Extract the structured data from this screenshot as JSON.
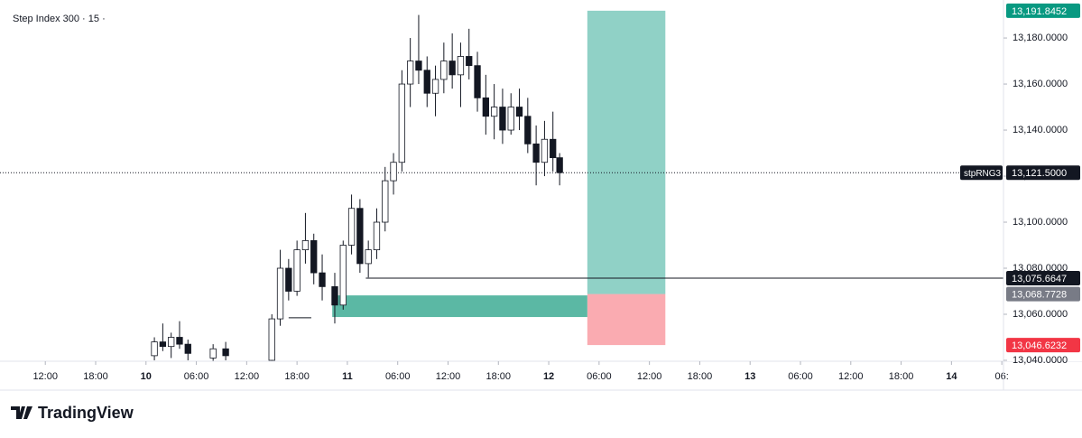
{
  "chart_data": {
    "type": "candlestick",
    "title": "Step Index 300 · 15 ·",
    "x": [
      13,
      14,
      15,
      16,
      17,
      20,
      21.5,
      27,
      28,
      29,
      30,
      31,
      32,
      33,
      34.5,
      35.5,
      36.5,
      37.5,
      38.5,
      39.5,
      40.5,
      41.5,
      42.5,
      43.5,
      44.5,
      45.5,
      46.5,
      47.5,
      48.5,
      49.5,
      50.5,
      51.5,
      52.5,
      53.5,
      54.5,
      55.5,
      56.5,
      57.5,
      58.5,
      59.5,
      60.5,
      61.3
    ],
    "open": [
      13042,
      13048,
      13046,
      13050,
      13047,
      13041,
      13045,
      13040,
      13058,
      13080,
      13070,
      13088,
      13092,
      13078,
      13072,
      13064,
      13090,
      13106,
      13082,
      13088,
      13100,
      13118,
      13126,
      13160,
      13170,
      13166,
      13156,
      13162,
      13170,
      13164,
      13172,
      13168,
      13154,
      13146,
      13150,
      13140,
      13150,
      13146,
      13134,
      13126,
      13136,
      13128
    ],
    "high": [
      13050,
      13056,
      13052,
      13057,
      13049,
      13047,
      13048,
      13060,
      13088,
      13084,
      13092,
      13104,
      13095,
      13086,
      13078,
      13092,
      13112,
      13110,
      13092,
      13106,
      13124,
      13130,
      13166,
      13180,
      13190,
      13172,
      13168,
      13178,
      13182,
      13178,
      13184,
      13174,
      13164,
      13160,
      13158,
      13156,
      13158,
      13154,
      13142,
      13144,
      13148,
      13130
    ],
    "low": [
      13040,
      13044,
      13041,
      13045,
      13040,
      13039,
      13040,
      13039,
      13055,
      13066,
      13068,
      13082,
      13073,
      13066,
      13056,
      13062,
      13086,
      13078,
      13076,
      13084,
      13096,
      13112,
      13122,
      13150,
      13160,
      13150,
      13146,
      13156,
      13158,
      13150,
      13162,
      13148,
      13138,
      13136,
      13134,
      13138,
      13140,
      13130,
      13116,
      13120,
      13122,
      13116
    ],
    "close": [
      13048,
      13046,
      13050,
      13047,
      13043,
      13045,
      13042,
      13058,
      13080,
      13070,
      13088,
      13092,
      13078,
      13072,
      13064,
      13090,
      13106,
      13082,
      13088,
      13100,
      13118,
      13126,
      13160,
      13170,
      13166,
      13156,
      13162,
      13170,
      13164,
      13172,
      13168,
      13154,
      13146,
      13150,
      13140,
      13150,
      13146,
      13134,
      13126,
      13136,
      13128,
      13121.5
    ],
    "xlim": [
      -5.4,
      114.2
    ],
    "xticks": [
      {
        "value": 0,
        "label": "12:00"
      },
      {
        "value": 6,
        "label": "18:00"
      },
      {
        "value": 12,
        "label": "10"
      },
      {
        "value": 18,
        "label": "06:00"
      },
      {
        "value": 24,
        "label": "12:00"
      },
      {
        "value": 30,
        "label": "18:00"
      },
      {
        "value": 36,
        "label": "11"
      },
      {
        "value": 42,
        "label": "06:00"
      },
      {
        "value": 48,
        "label": "12:00"
      },
      {
        "value": 54,
        "label": "18:00"
      },
      {
        "value": 60,
        "label": "12"
      },
      {
        "value": 66,
        "label": "06:00"
      },
      {
        "value": 72,
        "label": "12:00"
      },
      {
        "value": 78,
        "label": "18:00"
      },
      {
        "value": 84,
        "label": "13"
      },
      {
        "value": 90,
        "label": "06:00"
      },
      {
        "value": 96,
        "label": "12:00"
      },
      {
        "value": 102,
        "label": "18:00"
      },
      {
        "value": 108,
        "label": "14"
      },
      {
        "value": 114,
        "label": "06:"
      }
    ],
    "ylim": [
      13039.6,
      13196.5
    ],
    "yticks": [
      {
        "value": 13040,
        "label": "13,040.0000"
      },
      {
        "value": 13060,
        "label": "13,060.0000"
      },
      {
        "value": 13080,
        "label": "13,080.0000"
      },
      {
        "value": 13100,
        "label": "13,100.0000"
      },
      {
        "value": 13120,
        "label": "13,120.0000"
      },
      {
        "value": 13140,
        "label": "13,140.0000"
      },
      {
        "value": 13160,
        "label": "13,160.0000"
      },
      {
        "value": 13180,
        "label": "13,180.0000"
      }
    ],
    "last_price": {
      "name": "stpRNG3",
      "value": 13121.5,
      "label": "13,121.5000"
    },
    "level": {
      "x": 38.2,
      "value": 13075.6647,
      "label": "13,075.6647"
    },
    "zone": {
      "x": [
        34.2,
        64.6
      ],
      "y": [
        13058.8,
        13068.2
      ],
      "color": "#5bb8a4"
    },
    "segment": {
      "x": [
        29,
        31.7
      ],
      "value": 13058.5
    },
    "position": {
      "x": [
        64.6,
        73.9
      ],
      "target": {
        "value": 13191.8452,
        "label": "13,191.8452",
        "color": "#089981"
      },
      "entry": {
        "value": 13068.7728,
        "label": "13,068.7728",
        "color": "#787b86"
      },
      "stop": {
        "value": 13046.6232,
        "label": "13,046.6232",
        "color": "#f23645"
      }
    },
    "branding": "TradingView"
  }
}
